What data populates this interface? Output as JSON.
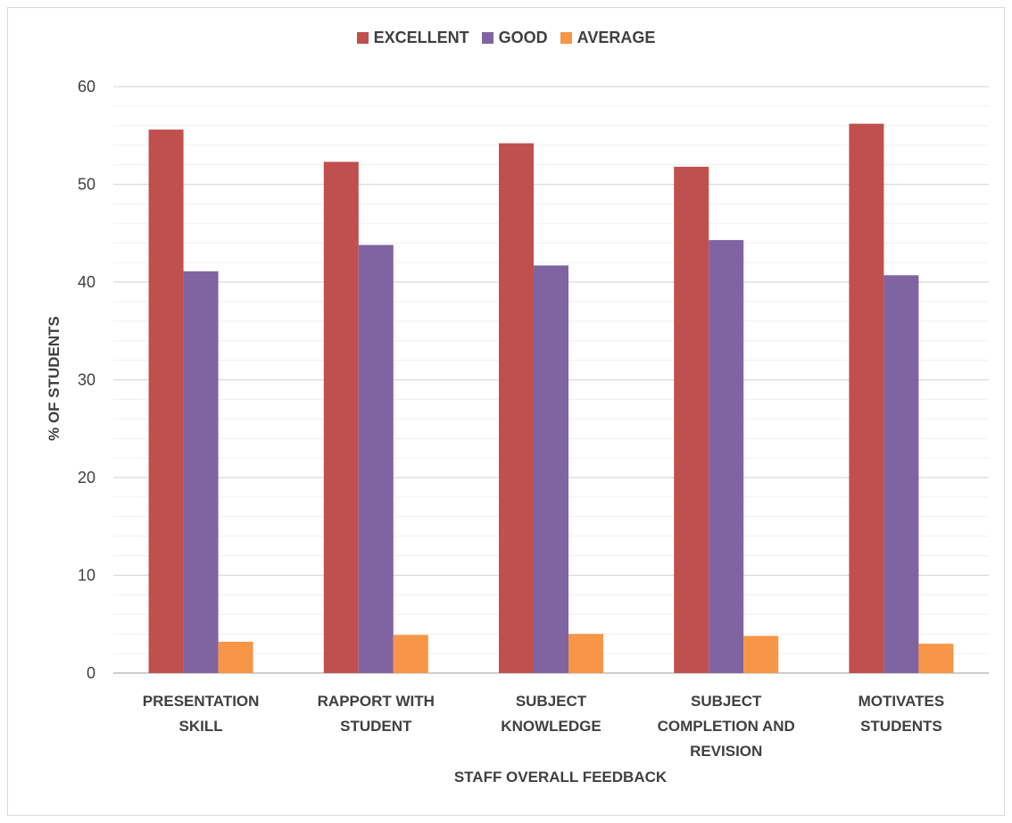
{
  "chart_data": {
    "type": "bar",
    "title": "",
    "xlabel": "STAFF OVERALL FEEDBACK",
    "ylabel": "% OF STUDENTS",
    "ylim": [
      0,
      60
    ],
    "yticks": [
      0,
      10,
      20,
      30,
      40,
      50,
      60
    ],
    "grid": true,
    "legend_position": "top",
    "categories": [
      [
        "PRESENTATION",
        "SKILL"
      ],
      [
        "RAPPORT WITH",
        "STUDENT"
      ],
      [
        "SUBJECT",
        "KNOWLEDGE"
      ],
      [
        "SUBJECT",
        "COMPLETION AND",
        "REVISION"
      ],
      [
        "MOTIVATES",
        "STUDENTS"
      ]
    ],
    "series": [
      {
        "name": "EXCELLENT",
        "color": "#c0504d",
        "values": [
          55.6,
          52.3,
          54.2,
          51.8,
          56.2
        ]
      },
      {
        "name": "GOOD",
        "color": "#8064a2",
        "values": [
          41.1,
          43.8,
          41.7,
          44.3,
          40.7
        ]
      },
      {
        "name": "AVERAGE",
        "color": "#f79646",
        "values": [
          3.2,
          3.9,
          4.0,
          3.8,
          3.0
        ]
      }
    ]
  }
}
